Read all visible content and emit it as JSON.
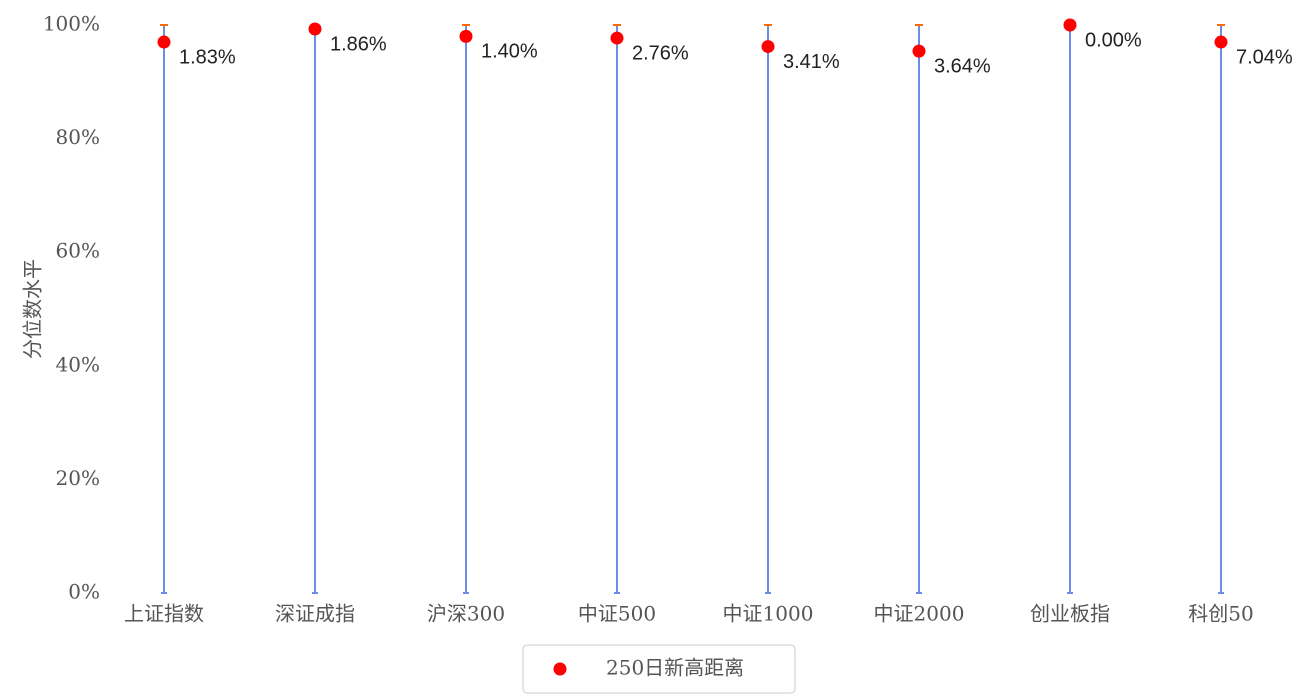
{
  "chart_data": {
    "type": "dot-range",
    "y_label": "分位数水平",
    "categories": [
      "上证指数",
      "深证成指",
      "沪深300",
      "中证500",
      "中证1000",
      "中证2000",
      "创业板指",
      "科创50"
    ],
    "series": [
      {
        "name": "250日新高距离",
        "color": "#ff0000",
        "values": [
          97,
          99.3,
          98,
          97.7,
          96.2,
          95.4,
          100,
          97
        ]
      }
    ],
    "annotations": {
      "values": [
        1.83,
        1.86,
        1.4,
        2.76,
        3.41,
        3.64,
        0.0,
        7.04
      ],
      "value_labels": [
        "1.83%",
        "1.86%",
        "1.40%",
        "2.76%",
        "3.41%",
        "3.64%",
        "0.00%",
        "7.04%"
      ]
    },
    "range_color": "#6b8de8",
    "cap_color": "#ff6a00",
    "ylim": [
      0,
      100
    ],
    "yticks": [
      {
        "value": 0,
        "label": "0%"
      },
      {
        "value": 20,
        "label": "20%"
      },
      {
        "value": 40,
        "label": "40%"
      },
      {
        "value": 60,
        "label": "60%"
      },
      {
        "value": 80,
        "label": "80%"
      },
      {
        "value": 100,
        "label": "100%"
      }
    ],
    "legend": "bottom"
  }
}
